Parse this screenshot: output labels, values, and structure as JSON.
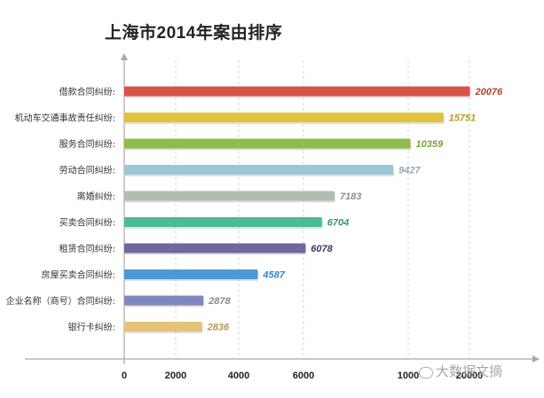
{
  "chart_data": {
    "type": "bar",
    "orientation": "horizontal",
    "title": "上海市2014年案由排序",
    "categories": [
      "借款合同纠纷:",
      "机动车交通事故责任纠纷:",
      "服务合同纠纷:",
      "劳动合同纠纷:",
      "离婚纠纷:",
      "买卖合同纠纷:",
      "租赁合同纠纷:",
      "房屋买卖合同纠纷:",
      "企业名称（商号）合同纠纷:",
      "银行卡纠纷:"
    ],
    "values": [
      20076,
      15751,
      10359,
      9427,
      7183,
      6704,
      6078,
      4587,
      2878,
      2836
    ],
    "value_labels": [
      "20076",
      "15751",
      "10359",
      "9427",
      "7183",
      "6704",
      "6078",
      "4587",
      "2878",
      "2836"
    ],
    "colors": [
      "#d9524a",
      "#e2c43c",
      "#8dbd4a",
      "#9bc6d8",
      "#b3bcb0",
      "#49bc96",
      "#6f689f",
      "#4a9ad8",
      "#7f88be",
      "#e6c27a"
    ],
    "label_colors": [
      "#b04238",
      "#b89a22",
      "#76a53a",
      "#9aa8b5",
      "#8c918a",
      "#2f9b78",
      "#3d3a6b",
      "#3a84c4",
      "#8a8a8a",
      "#b89a4a"
    ],
    "axis_break": true,
    "xticks": [
      "0",
      "2000",
      "4000",
      "6000",
      "10000",
      "20000"
    ],
    "xticks_visible": [
      "0",
      "2000",
      "4000",
      "6000",
      "1000",
      "20000"
    ],
    "grid": true,
    "legend": "none",
    "xlabel": "",
    "ylabel": ""
  },
  "watermark": "大数据文摘"
}
